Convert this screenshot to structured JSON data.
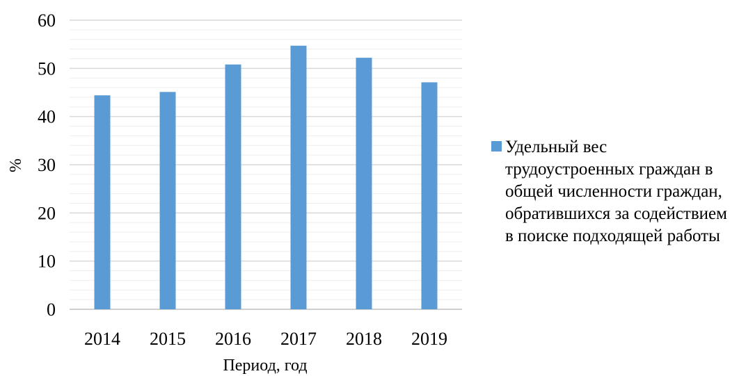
{
  "colors": {
    "series": "#5b9bd5",
    "grid_major": "#d9d9d9",
    "grid_minor": "#eeeeee",
    "axis": "#bfbfbf"
  },
  "chart_data": {
    "type": "bar",
    "categories": [
      "2014",
      "2015",
      "2016",
      "2017",
      "2018",
      "2019"
    ],
    "series": [
      {
        "name": "Удельный вес трудоустроенных граждан в общей численности граждан, обратившихся за содействием в поиске подходящей работы",
        "values": [
          44.4,
          45.1,
          50.8,
          54.7,
          52.2,
          47.1
        ]
      }
    ],
    "xlabel": "Период, год",
    "ylabel": "%",
    "ylim": [
      0,
      60
    ],
    "yticks": [
      "0",
      "10",
      "20",
      "30",
      "40",
      "50",
      "60"
    ],
    "grid": true,
    "minor_grid": true,
    "legend_position": "right"
  }
}
